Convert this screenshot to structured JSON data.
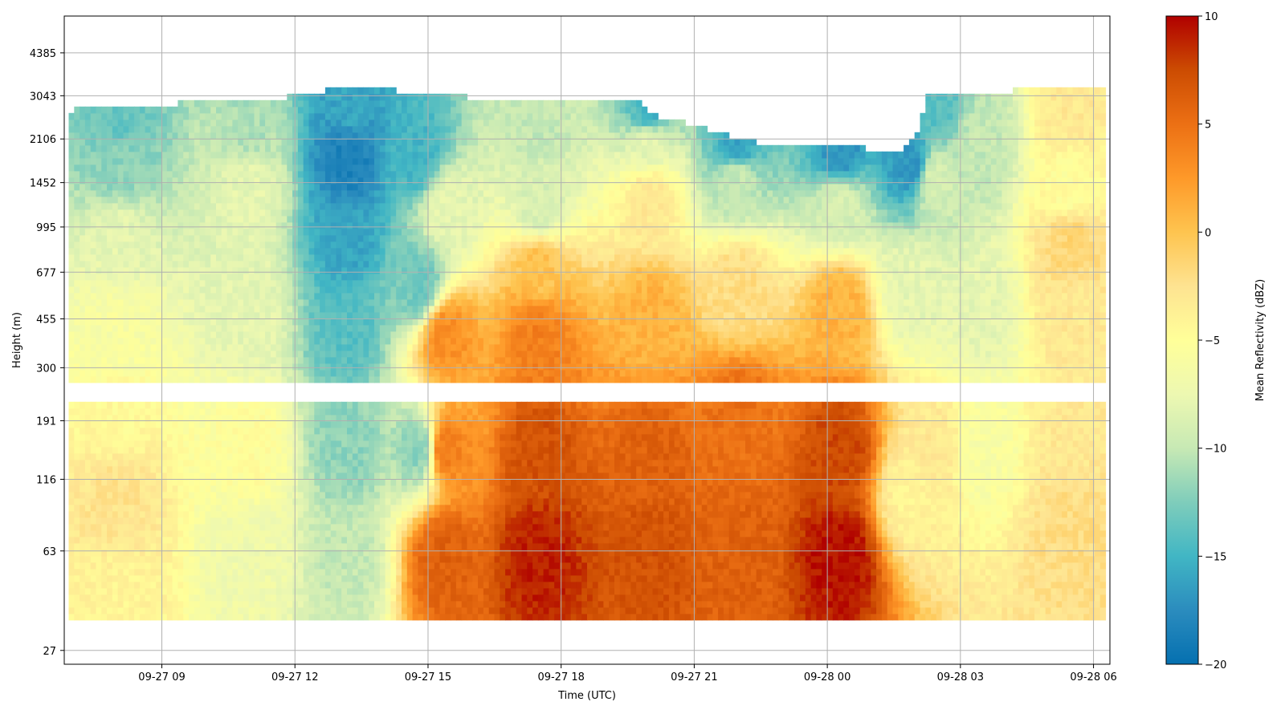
{
  "chart_data": {
    "type": "heatmap",
    "xlabel": "Time (UTC)",
    "ylabel": "Height (m)",
    "x_ticks": [
      "09-27 09",
      "09-27 12",
      "09-27 15",
      "09-27 18",
      "09-27 21",
      "09-28 00",
      "09-28 03",
      "09-28 06"
    ],
    "x_tick_hours": [
      9,
      12,
      15,
      18,
      21,
      24,
      27,
      30
    ],
    "xlim_hours": [
      6.8,
      30.37
    ],
    "data_x_range_hours": [
      6.9,
      30.27
    ],
    "y_ticks": [
      "27",
      "63",
      "116",
      "191",
      "300",
      "455",
      "677",
      "995",
      "1452",
      "2106",
      "3043",
      "4385"
    ],
    "y_tick_values_m": [
      27,
      63,
      116,
      191,
      300,
      455,
      677,
      995,
      1452,
      2106,
      3043,
      4385
    ],
    "ylim_m": [
      24,
      6000
    ],
    "gap_band_m": [
      230,
      262
    ],
    "data_bottom_m": 35,
    "colorbar": {
      "label": "Mean Reflectivity (dBZ)",
      "range": [
        -20,
        10
      ],
      "ticks": [
        "−20",
        "−15",
        "−10",
        "−5",
        "0",
        "5",
        "10"
      ],
      "tick_values": [
        -20,
        -15,
        -10,
        -5,
        0,
        5,
        10
      ],
      "colormap_stops": [
        "#0570b0",
        "#2b8cbe",
        "#41b6c4",
        "#7fcdbb",
        "#c7e9b4",
        "#edf8b1",
        "#ffff99",
        "#fee391",
        "#fec44f",
        "#fe9929",
        "#ec7014",
        "#cc4c02",
        "#b00000"
      ]
    },
    "cloud_top_m": [
      {
        "t": 6.9,
        "h": 2620
      },
      {
        "t": 8,
        "h": 2720
      },
      {
        "t": 10,
        "h": 2800
      },
      {
        "t": 12,
        "h": 2950
      },
      {
        "t": 13.2,
        "h": 3200
      },
      {
        "t": 14.8,
        "h": 3050
      },
      {
        "t": 16,
        "h": 2920
      },
      {
        "t": 18,
        "h": 2880
      },
      {
        "t": 19.6,
        "h": 2900
      },
      {
        "t": 20.2,
        "h": 2500
      },
      {
        "t": 21,
        "h": 2300
      },
      {
        "t": 22,
        "h": 2050
      },
      {
        "t": 23.2,
        "h": 1900
      },
      {
        "t": 24.5,
        "h": 1950
      },
      {
        "t": 25.6,
        "h": 1800
      },
      {
        "t": 26,
        "h": 2100
      },
      {
        "t": 26.3,
        "h": 3050
      },
      {
        "t": 30.27,
        "h": 3150
      }
    ],
    "clear_patches": [
      {
        "t": 23.2,
        "h": 2650
      },
      {
        "t": 23.9,
        "h": 2550
      },
      {
        "t": 22.3,
        "h": 2750
      }
    ],
    "fields": [
      {
        "t": 8,
        "h": 40,
        "v": -4
      },
      {
        "t": 8,
        "h": 100,
        "v": -2.5
      },
      {
        "t": 8,
        "h": 200,
        "v": -4.5
      },
      {
        "t": 8,
        "h": 420,
        "v": -6
      },
      {
        "t": 8,
        "h": 900,
        "v": -8
      },
      {
        "t": 8,
        "h": 1700,
        "v": -12
      },
      {
        "t": 8,
        "h": 2500,
        "v": -13.5
      },
      {
        "t": 11,
        "h": 60,
        "v": -7
      },
      {
        "t": 11,
        "h": 150,
        "v": -5
      },
      {
        "t": 11,
        "h": 500,
        "v": -8
      },
      {
        "t": 11,
        "h": 1400,
        "v": -8
      },
      {
        "t": 11,
        "h": 2400,
        "v": -11
      },
      {
        "t": 13.2,
        "h": 60,
        "v": -10
      },
      {
        "t": 13.2,
        "h": 150,
        "v": -12
      },
      {
        "t": 13.2,
        "h": 420,
        "v": -14
      },
      {
        "t": 13.2,
        "h": 900,
        "v": -16
      },
      {
        "t": 13.2,
        "h": 1800,
        "v": -18.5
      },
      {
        "t": 13.2,
        "h": 2800,
        "v": -16
      },
      {
        "t": 14.8,
        "h": 150,
        "v": -12
      },
      {
        "t": 14.8,
        "h": 600,
        "v": -13
      },
      {
        "t": 14.8,
        "h": 1800,
        "v": -15
      },
      {
        "t": 15.4,
        "h": 60,
        "v": 6
      },
      {
        "t": 15.4,
        "h": 150,
        "v": 4
      },
      {
        "t": 15.4,
        "h": 400,
        "v": 3
      },
      {
        "t": 15.4,
        "h": 1200,
        "v": -8
      },
      {
        "t": 17.5,
        "h": 60,
        "v": 9
      },
      {
        "t": 17.5,
        "h": 150,
        "v": 7
      },
      {
        "t": 17.5,
        "h": 400,
        "v": 4
      },
      {
        "t": 17.5,
        "h": 700,
        "v": 0
      },
      {
        "t": 17.5,
        "h": 1200,
        "v": -9
      },
      {
        "t": 17.5,
        "h": 2500,
        "v": -10
      },
      {
        "t": 20,
        "h": 60,
        "v": 7
      },
      {
        "t": 20,
        "h": 150,
        "v": 6
      },
      {
        "t": 20,
        "h": 450,
        "v": 1
      },
      {
        "t": 20,
        "h": 1300,
        "v": -3
      },
      {
        "t": 20,
        "h": 2000,
        "v": -8
      },
      {
        "t": 20,
        "h": 2700,
        "v": -15
      },
      {
        "t": 22,
        "h": 60,
        "v": 6
      },
      {
        "t": 22,
        "h": 200,
        "v": 5
      },
      {
        "t": 22,
        "h": 600,
        "v": -2
      },
      {
        "t": 22,
        "h": 1500,
        "v": -10
      },
      {
        "t": 22,
        "h": 2000,
        "v": -16
      },
      {
        "t": 24.3,
        "h": 60,
        "v": 9.5
      },
      {
        "t": 24.3,
        "h": 150,
        "v": 7.5
      },
      {
        "t": 24.3,
        "h": 500,
        "v": 1
      },
      {
        "t": 24.3,
        "h": 1200,
        "v": -9
      },
      {
        "t": 24.3,
        "h": 1900,
        "v": -17
      },
      {
        "t": 25.9,
        "h": 100,
        "v": -4
      },
      {
        "t": 25.9,
        "h": 600,
        "v": -8
      },
      {
        "t": 25.9,
        "h": 1700,
        "v": -17
      },
      {
        "t": 26.4,
        "h": 150,
        "v": -3
      },
      {
        "t": 26.4,
        "h": 1500,
        "v": -9
      },
      {
        "t": 26.4,
        "h": 2800,
        "v": -14
      },
      {
        "t": 27.5,
        "h": 150,
        "v": -6
      },
      {
        "t": 27.5,
        "h": 500,
        "v": -8
      },
      {
        "t": 27.5,
        "h": 2000,
        "v": -10
      },
      {
        "t": 29.5,
        "h": 80,
        "v": -2
      },
      {
        "t": 29.5,
        "h": 150,
        "v": -3
      },
      {
        "t": 29.5,
        "h": 500,
        "v": -3
      },
      {
        "t": 29.5,
        "h": 850,
        "v": -1.5
      },
      {
        "t": 29.5,
        "h": 1400,
        "v": -5
      },
      {
        "t": 29.5,
        "h": 2700,
        "v": -3
      }
    ],
    "grid": true,
    "legend": "none"
  }
}
